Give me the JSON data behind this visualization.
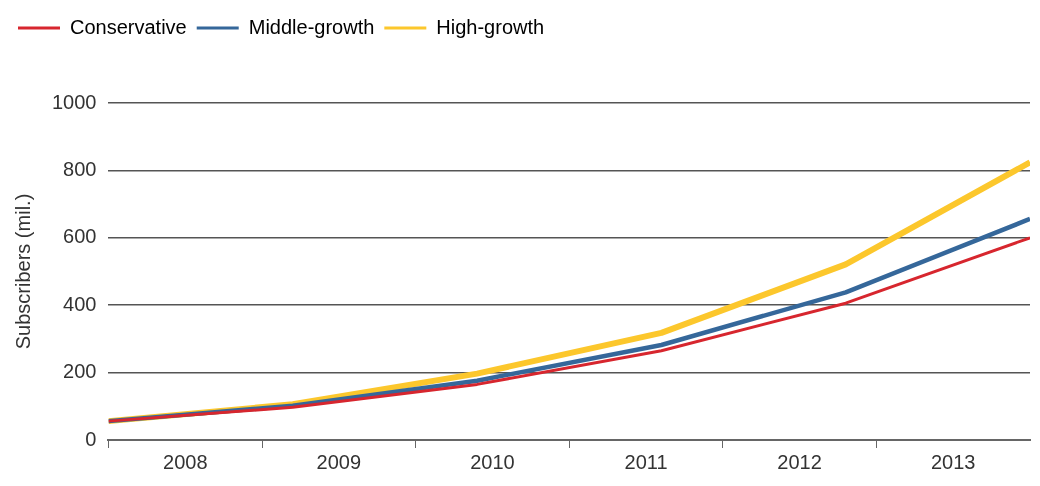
{
  "chart_data": {
    "type": "line",
    "ylabel": "Subscribers (mil.)",
    "x": [
      2008,
      2009.2,
      2010.4,
      2011.6,
      2012.8,
      2014
    ],
    "series": [
      {
        "name": "Conservative",
        "color": "#d7262e",
        "values": [
          56,
          97,
          165,
          265,
          406,
          600
        ]
      },
      {
        "name": "Middle-growth",
        "color": "#35679a",
        "values": [
          56,
          102,
          176,
          282,
          438,
          656
        ]
      },
      {
        "name": "High-growth",
        "color": "#fcc72c",
        "values": [
          56,
          106,
          197,
          318,
          521,
          824
        ]
      }
    ],
    "xlim": [
      2008,
      2014
    ],
    "xticks": [
      {
        "value": 2008,
        "label": null
      },
      {
        "value": 2008.5,
        "label": "2008"
      },
      {
        "value": 2009,
        "label": null
      },
      {
        "value": 2009.5,
        "label": "2009"
      },
      {
        "value": 2010,
        "label": null
      },
      {
        "value": 2010.5,
        "label": "2010"
      },
      {
        "value": 2011,
        "label": null
      },
      {
        "value": 2011.5,
        "label": "2011"
      },
      {
        "value": 2012,
        "label": null
      },
      {
        "value": 2012.5,
        "label": "2012"
      },
      {
        "value": 2013,
        "label": null
      },
      {
        "value": 2013.5,
        "label": "2013"
      }
    ],
    "ylim": [
      0,
      1000
    ],
    "yticks": [
      0,
      200,
      400,
      600,
      800,
      1000
    ],
    "grid": "y",
    "legend": "top left",
    "marker": "none",
    "line_style": "solid"
  }
}
